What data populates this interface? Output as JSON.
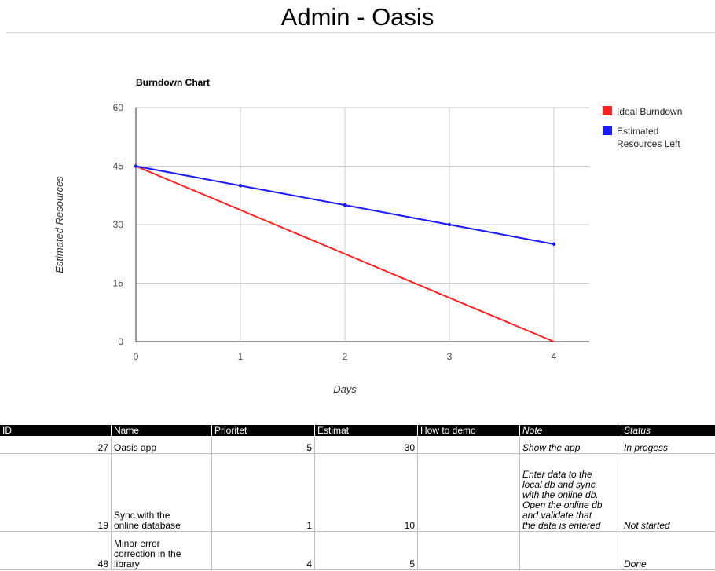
{
  "sheet": {
    "title": "Admin - Oasis"
  },
  "chart_data": {
    "type": "line",
    "title": "Burndown Chart",
    "xlabel": "Days",
    "ylabel": "Estimated Resources",
    "x": [
      0,
      1,
      2,
      3,
      4
    ],
    "xlim": [
      0,
      4
    ],
    "ylim": [
      0,
      60
    ],
    "yticks": [
      0,
      15,
      30,
      45,
      60
    ],
    "xticks": [
      0,
      1,
      2,
      3,
      4
    ],
    "grid": true,
    "legend_position": "right",
    "series": [
      {
        "name": "Ideal Burndown",
        "color": "#ff2020",
        "values": [
          45,
          33.75,
          22.5,
          11.25,
          0
        ],
        "markers": false
      },
      {
        "name": "Estimated Resources Left",
        "color": "#1a1aff",
        "values": [
          45,
          40,
          35,
          30,
          25
        ],
        "markers": true
      }
    ],
    "legend_lines": [
      [
        "Ideal Burndown"
      ],
      [
        "Estimated",
        "Resources Left"
      ]
    ]
  },
  "table": {
    "columns": [
      {
        "key": "id",
        "label": "ID",
        "italic": false
      },
      {
        "key": "name",
        "label": "Name",
        "italic": false
      },
      {
        "key": "prioritet",
        "label": "Prioritet",
        "italic": false
      },
      {
        "key": "estimat",
        "label": "Estimat",
        "italic": false
      },
      {
        "key": "demo",
        "label": "How to demo",
        "italic": false
      },
      {
        "key": "note",
        "label": "Note",
        "italic": true
      },
      {
        "key": "status",
        "label": "Status",
        "italic": true
      }
    ],
    "rows": [
      {
        "id": "27",
        "name": "Oasis app",
        "prioritet": "5",
        "estimat": "30",
        "demo": "",
        "note": "Show the app",
        "status": "In progess"
      },
      {
        "id": "19",
        "name": "Sync with the\nonline database",
        "prioritet": "1",
        "estimat": "10",
        "demo": "",
        "note": "Enter data to the\nlocal db and sync\nwith the online db.\nOpen the online db\nand validate that\nthe data is entered",
        "status": "Not started"
      },
      {
        "id": "48",
        "name": "Minor error\ncorrection in the\nlibrary",
        "prioritet": "4",
        "estimat": "5",
        "demo": "",
        "note": "",
        "status": "Done"
      }
    ]
  }
}
